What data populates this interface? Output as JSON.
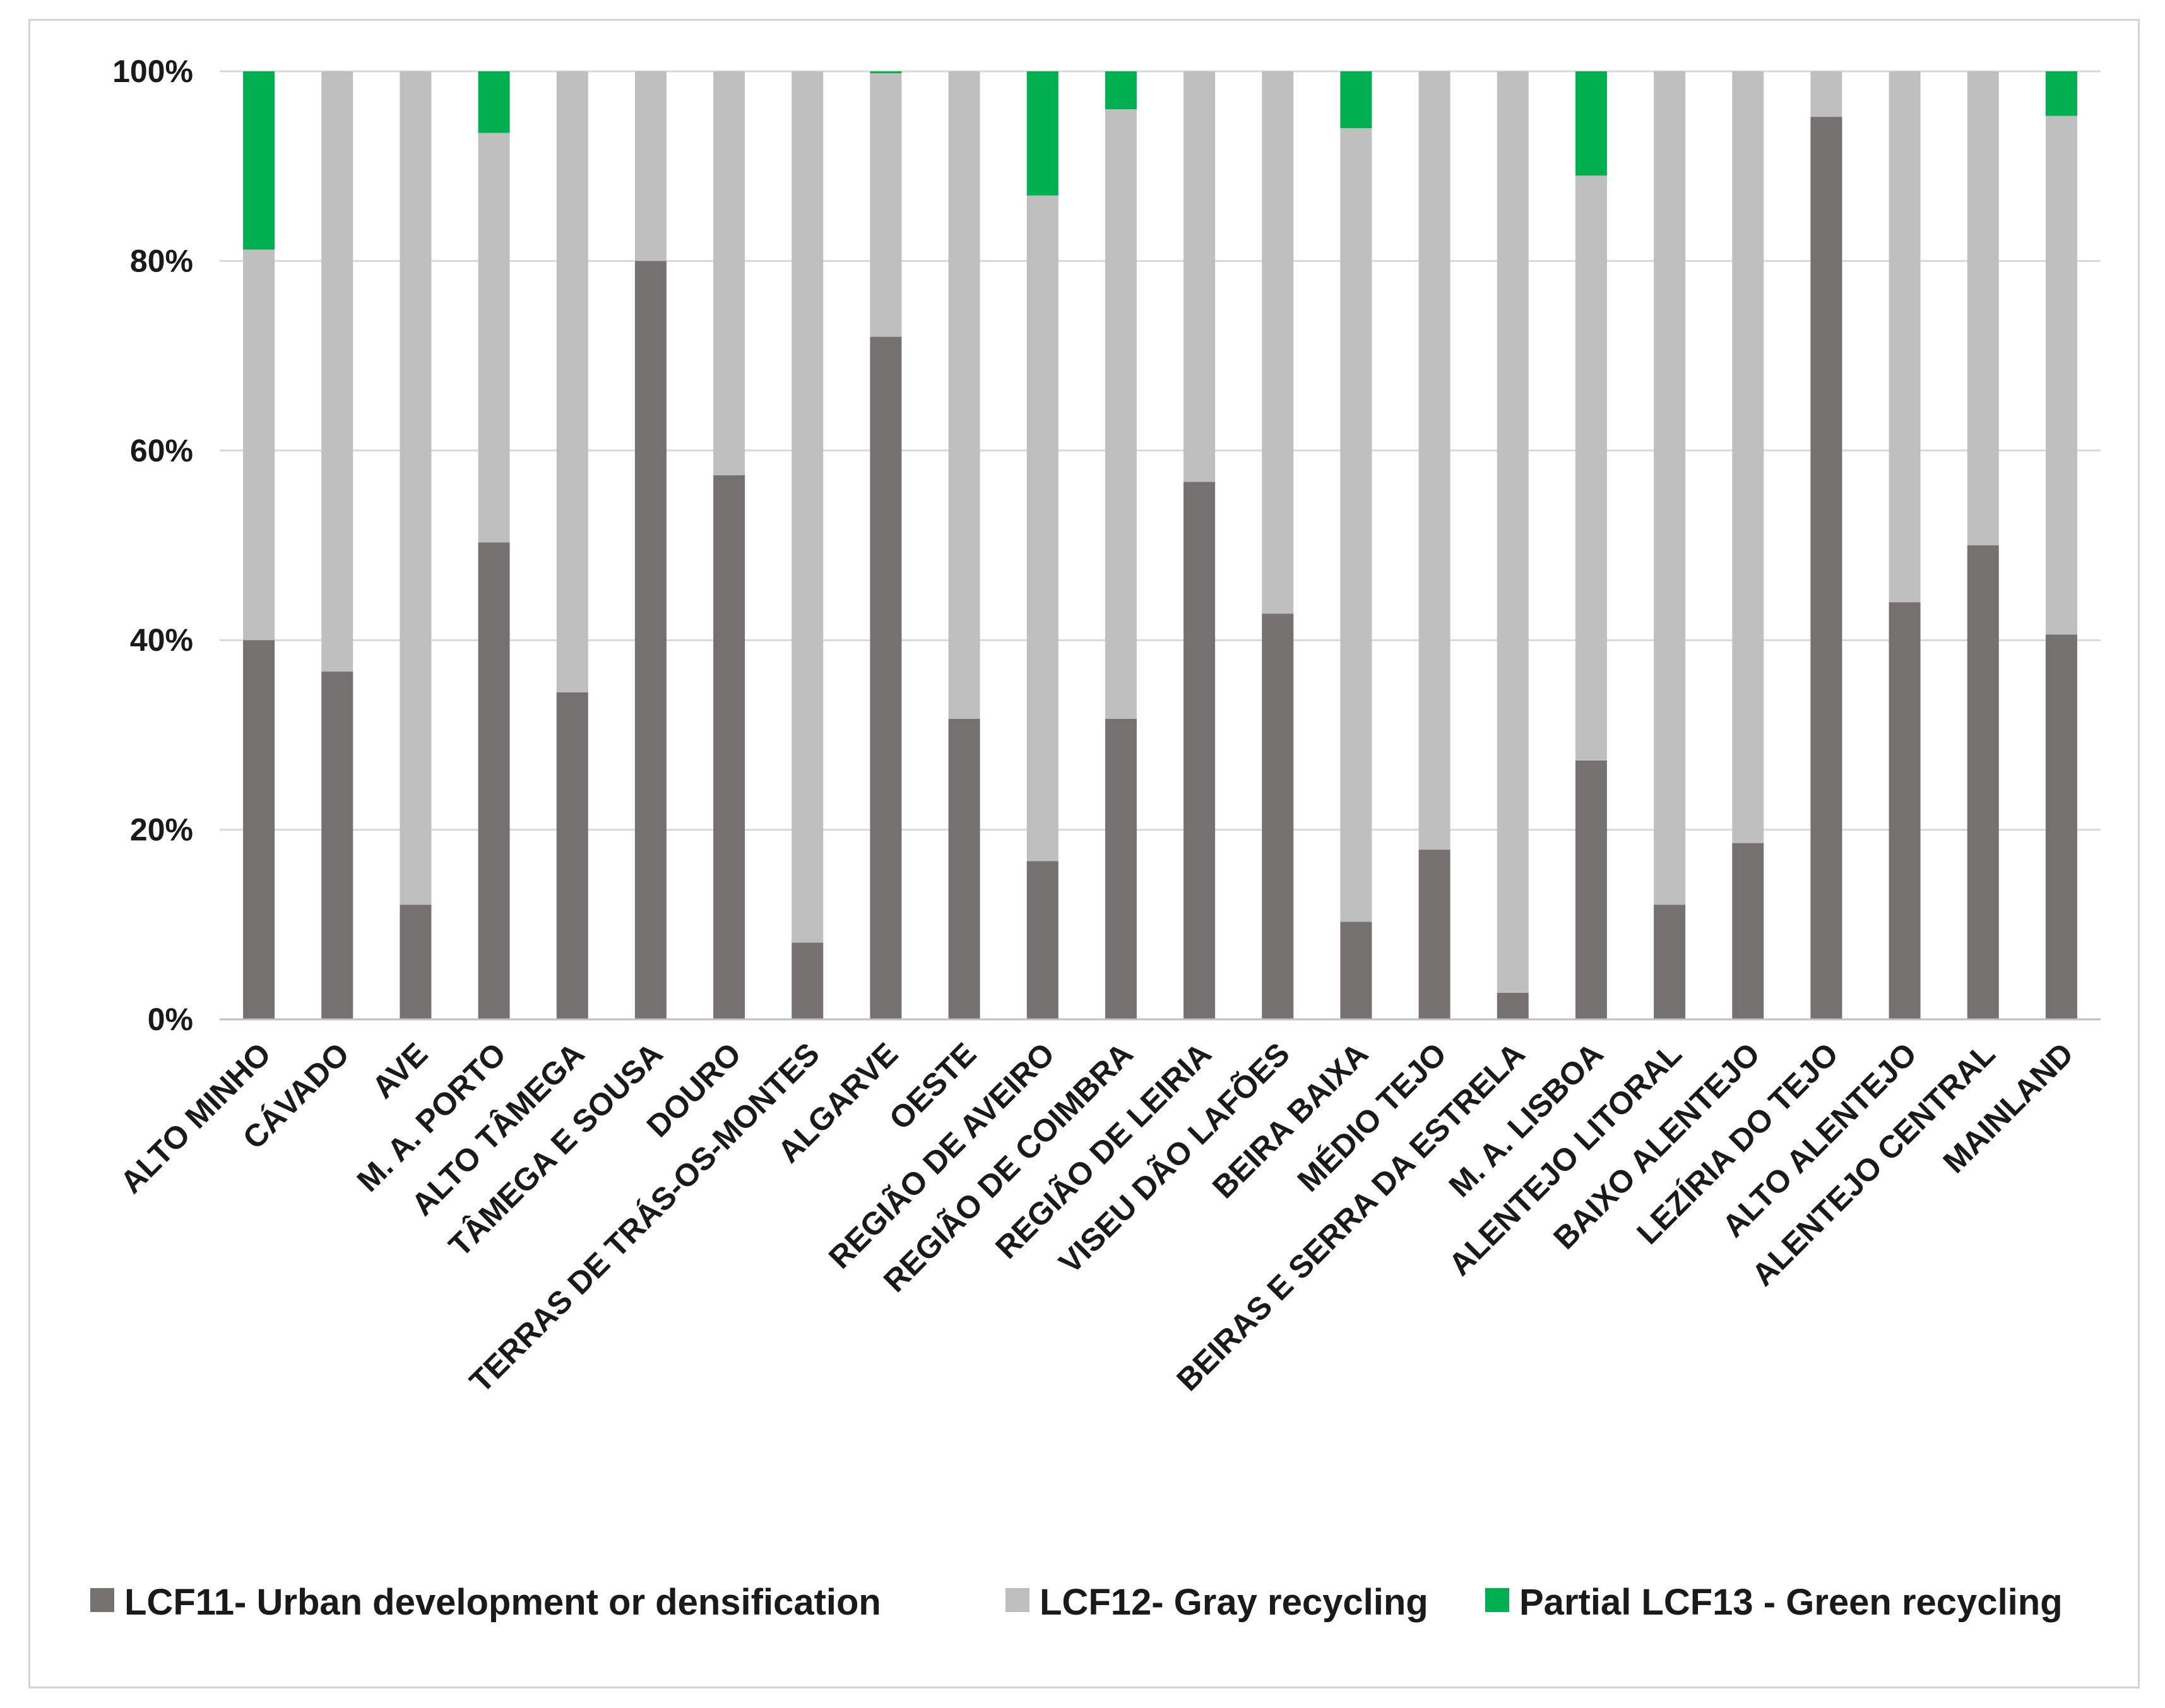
{
  "colors": {
    "lcf11": "#767171",
    "lcf12": "#bfbfbf",
    "lcf13": "#00b050",
    "grid": "#d9d9d9",
    "axis": "#bfbfbf"
  },
  "chart_data": {
    "type": "bar",
    "stacked": true,
    "title": "",
    "xlabel": "",
    "ylabel": "",
    "ylim": [
      0,
      100
    ],
    "y_ticks": [
      "0%",
      "20%",
      "40%",
      "60%",
      "80%",
      "100%"
    ],
    "categories": [
      "ALTO MINHO",
      "CÁVADO",
      "AVE",
      "M. A. PORTO",
      "ALTO TÂMEGA",
      "TÂMEGA E SOUSA",
      "DOURO",
      "TERRAS DE TRÁS-OS-MONTES",
      "ALGARVE",
      "OESTE",
      "REGIÃO DE AVEIRO",
      "REGIÃO DE COIMBRA",
      "REGIÃO DE LEIRIA",
      "VISEU DÃO LAFÕES",
      "BEIRA BAIXA",
      "MÉDIO TEJO",
      "BEIRAS E SERRA DA ESTRELA",
      "M. A. LISBOA",
      "ALENTEJO LITORAL",
      "BAIXO ALENTEJO",
      "LEZÍRIA DO TEJO",
      "ALTO ALENTEJO",
      "ALENTEJO CENTRAL",
      "MAINLAND"
    ],
    "series": [
      {
        "name": "LCF11- Urban development or densification",
        "values": [
          40,
          36.7,
          12.1,
          50.3,
          34.5,
          80,
          57.4,
          8.1,
          72,
          31.7,
          16.7,
          31.7,
          56.7,
          42.8,
          10.3,
          17.9,
          2.8,
          27.3,
          12.1,
          18.6,
          95.2,
          44,
          50,
          40.6
        ]
      },
      {
        "name": "LCF12- Gray recycling",
        "values": [
          41.2,
          63.3,
          87.9,
          43.2,
          65.5,
          20,
          42.6,
          91.9,
          27.8,
          68.3,
          70.2,
          64.3,
          43.3,
          57.2,
          83.7,
          82.1,
          97.2,
          61.7,
          87.9,
          81.4,
          4.8,
          56,
          50,
          54.7
        ]
      },
      {
        "name": "Partial LCF13 - Green recycling",
        "values": [
          18.8,
          0,
          0,
          6.5,
          0,
          0,
          0,
          0,
          0.2,
          0,
          13.1,
          4,
          0,
          0,
          6,
          0,
          0,
          11,
          0,
          0,
          0,
          0,
          0,
          4.7
        ]
      }
    ],
    "legend_position": "bottom",
    "grid": true
  }
}
